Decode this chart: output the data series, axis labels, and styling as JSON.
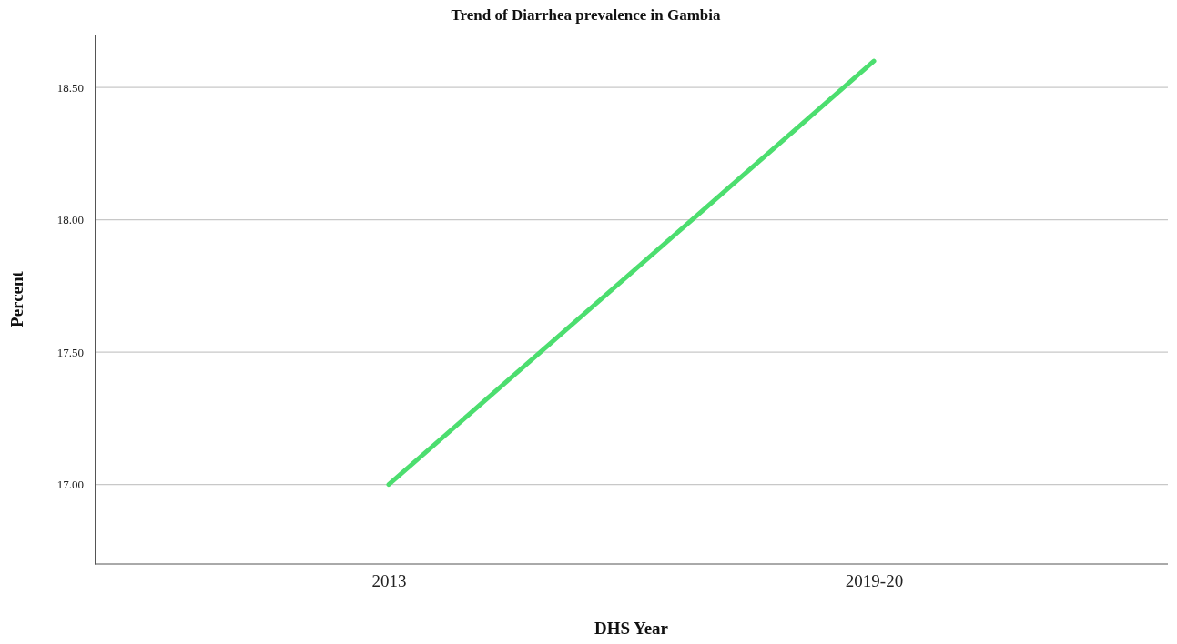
{
  "chart_data": {
    "type": "line",
    "title": "Trend of Diarrhea prevalence in Gambia",
    "xlabel": "DHS Year",
    "ylabel": "Percent",
    "categories": [
      "2013",
      "2019-20"
    ],
    "series": [
      {
        "color": "#4cde6f",
        "values": [
          17.0,
          18.6
        ]
      }
    ],
    "ylim": [
      16.7,
      18.7
    ],
    "yticks": [
      {
        "value": 17,
        "label": "17.00"
      },
      {
        "value": 17.5,
        "label": "17.50"
      },
      {
        "value": 18,
        "label": "18.00"
      },
      {
        "value": 18.5,
        "label": "18.50"
      }
    ],
    "grid": "y",
    "marker": "none",
    "line_style": "solid"
  }
}
